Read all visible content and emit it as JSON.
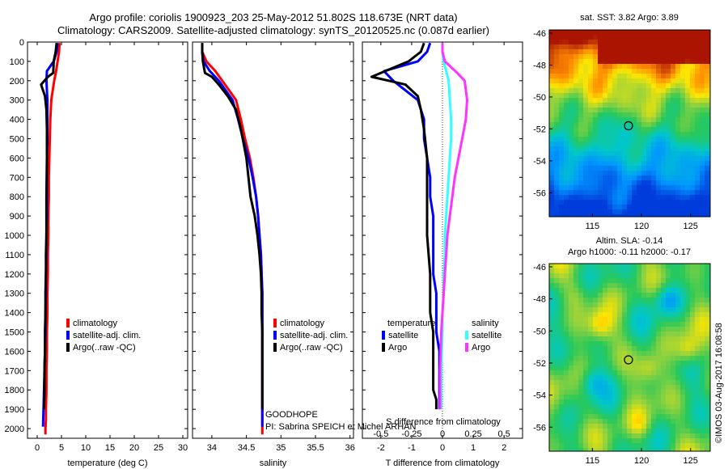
{
  "header": {
    "title_line1": "Argo profile: coriolis 1900923_203 25-May-2012 51.802S 118.673E (NRT data)",
    "title_line2": "Climatology: CARS2009. Satellite-adjusted climatology: synTS_20120525.nc (0.087d earlier)"
  },
  "colors": {
    "climatology": "#ff0000",
    "satellite": "#0000ff",
    "argo": "#000000",
    "argo_salinity_diff": "#ff33ff",
    "satellite_salinity_diff": "#33ffff"
  },
  "chart_data": [
    {
      "type": "line",
      "id": "temperature",
      "xlabel": "temperature (deg C)",
      "xlim": [
        -2,
        31
      ],
      "ylim": [
        2050,
        0
      ],
      "xticks": [
        0,
        5,
        10,
        15,
        20,
        25,
        30
      ],
      "yticks": [
        0,
        100,
        200,
        300,
        400,
        500,
        600,
        700,
        800,
        900,
        1000,
        1100,
        1200,
        1300,
        1400,
        1500,
        1600,
        1700,
        1800,
        1900,
        2000
      ],
      "legend": [
        "climatology",
        "satellite-adj. clim.",
        "Argo(..raw -QC)"
      ],
      "series": [
        {
          "key": "climatology",
          "x": [
            4.6,
            4.5,
            4.2,
            3.9,
            3.5,
            3.2,
            2.9,
            2.7,
            2.6,
            2.5,
            2.4,
            2.4,
            2.3,
            2.3,
            2.2,
            2.2,
            2.1,
            2.1,
            2.0,
            2.0,
            1.9,
            1.9,
            1.8,
            1.8,
            1.7,
            1.7
          ],
          "y": [
            5,
            50,
            100,
            150,
            200,
            250,
            300,
            400,
            500,
            600,
            700,
            800,
            900,
            1000,
            1100,
            1200,
            1300,
            1400,
            1500,
            1600,
            1700,
            1800,
            1900,
            1950,
            2000,
            2030
          ]
        },
        {
          "key": "satellite",
          "x": [
            4.2,
            4.0,
            3.4,
            2.0,
            1.9,
            2.0,
            2.1,
            2.1,
            2.1,
            2.0,
            2.0,
            2.0,
            2.0,
            1.9,
            1.9,
            1.8,
            1.8,
            1.7,
            1.7,
            1.6,
            1.5,
            1.4,
            1.3,
            1.2
          ],
          "y": [
            5,
            50,
            100,
            150,
            200,
            250,
            300,
            400,
            500,
            600,
            700,
            800,
            900,
            1000,
            1100,
            1200,
            1300,
            1400,
            1500,
            1600,
            1700,
            1800,
            1900,
            1990
          ]
        },
        {
          "key": "argo",
          "x": [
            4.0,
            3.8,
            3.4,
            3.3,
            2.2,
            0.8,
            1.6,
            1.9,
            2.0,
            2.0,
            1.9,
            1.9,
            1.9,
            1.8,
            1.8,
            1.7,
            1.7,
            1.6,
            1.6,
            1.5,
            1.5,
            1.4
          ],
          "y": [
            5,
            50,
            100,
            160,
            180,
            220,
            280,
            350,
            450,
            600,
            800,
            900,
            1000,
            1100,
            1200,
            1300,
            1400,
            1500,
            1600,
            1700,
            1800,
            1900
          ]
        }
      ]
    },
    {
      "type": "line",
      "id": "salinity",
      "xlabel": "salinity",
      "xlim": [
        33.72,
        36.05
      ],
      "ylim": [
        2050,
        0
      ],
      "xticks": [
        34,
        34.5,
        35,
        35.5,
        36
      ],
      "legend": [
        "climatology",
        "satellite-adj. clim.",
        "Argo(..raw -QC)"
      ],
      "series": [
        {
          "key": "climatology",
          "x": [
            33.86,
            33.86,
            33.92,
            34.05,
            34.15,
            34.25,
            34.35,
            34.42,
            34.48,
            34.55,
            34.6,
            34.64,
            34.67,
            34.69,
            34.71,
            34.72,
            34.73,
            34.73,
            34.73,
            34.73,
            34.73,
            34.73,
            34.73,
            34.73,
            34.73,
            34.73
          ],
          "y": [
            5,
            50,
            100,
            150,
            200,
            250,
            300,
            400,
            500,
            600,
            700,
            800,
            900,
            1000,
            1100,
            1200,
            1300,
            1400,
            1500,
            1600,
            1700,
            1800,
            1900,
            1950,
            2000,
            2030
          ]
        },
        {
          "key": "satellite",
          "x": [
            33.86,
            33.86,
            33.88,
            33.97,
            34.1,
            34.2,
            34.3,
            34.38,
            34.45,
            34.53,
            34.59,
            34.64,
            34.67,
            34.69,
            34.71,
            34.72,
            34.73,
            34.73,
            34.73,
            34.73,
            34.73,
            34.73,
            34.73,
            34.73
          ],
          "y": [
            5,
            50,
            100,
            150,
            200,
            250,
            300,
            400,
            500,
            600,
            700,
            800,
            900,
            1000,
            1100,
            1200,
            1300,
            1400,
            1500,
            1600,
            1700,
            1800,
            1900,
            1990
          ]
        },
        {
          "key": "argo",
          "x": [
            33.86,
            33.86,
            33.87,
            33.9,
            34.0,
            34.1,
            34.23,
            34.35,
            34.42,
            34.5,
            34.56,
            34.62,
            34.66,
            34.69,
            34.71,
            34.72,
            34.72,
            34.73,
            34.73,
            34.73,
            34.73,
            34.73
          ],
          "y": [
            5,
            50,
            100,
            160,
            180,
            220,
            280,
            350,
            450,
            600,
            800,
            900,
            1000,
            1100,
            1200,
            1300,
            1400,
            1500,
            1600,
            1700,
            1800,
            1900
          ]
        }
      ],
      "annotation": [
        "GOODHOPE",
        "PI: Sabrina SPEICH et Michel ARHAN"
      ]
    },
    {
      "type": "line",
      "id": "differences",
      "xlabel": "T difference from climatology",
      "xlabel_top": "S difference from climatology",
      "xlim": [
        -2.6,
        2.6
      ],
      "ylim": [
        2050,
        0
      ],
      "xticks": [
        -2,
        -1,
        0,
        1,
        2
      ],
      "s_ticks": [
        -0.5,
        -0.25,
        0,
        0.25,
        0.5
      ],
      "legend_headers": [
        "temperature",
        "salinity"
      ],
      "legend": [
        "satellite",
        "Argo",
        "satellite",
        "Argo"
      ],
      "series": [
        {
          "key": "satellite",
          "x": [
            -0.4,
            -0.5,
            -0.8,
            -1.9,
            -1.6,
            -1.2,
            -0.8,
            -0.6,
            -0.6,
            -0.5,
            -0.4,
            -0.4,
            -0.3,
            -0.3,
            -0.3,
            -0.3,
            -0.2,
            -0.2,
            -0.2,
            -0.1,
            -0.1,
            -0.1,
            -0.1
          ],
          "y": [
            5,
            50,
            100,
            150,
            200,
            250,
            300,
            400,
            500,
            600,
            700,
            800,
            900,
            1000,
            1100,
            1200,
            1300,
            1400,
            1500,
            1600,
            1700,
            1800,
            1900
          ]
        },
        {
          "key": "argo",
          "x": [
            -0.6,
            -0.7,
            -1.1,
            -2.3,
            -1.2,
            -0.8,
            -0.7,
            -0.6,
            -0.5,
            -0.5,
            -0.5,
            -0.4,
            -0.4,
            -0.4,
            -0.3,
            -0.3,
            -0.3,
            -0.3,
            -0.2,
            -0.2
          ],
          "y": [
            5,
            50,
            100,
            180,
            220,
            280,
            350,
            450,
            600,
            800,
            1000,
            1200,
            1300,
            1400,
            1500,
            1600,
            1700,
            1800,
            1850,
            1900
          ]
        },
        {
          "key": "satellite_salinity_diff",
          "x": [
            0,
            0,
            0.01,
            0.03,
            0.05,
            0.06,
            0.07,
            0.07,
            0.06,
            0.05,
            0.04,
            0.03,
            0.02,
            0.02,
            0.01,
            0.01,
            0.0,
            0.0,
            -0.01,
            -0.01
          ],
          "y": [
            5,
            50,
            100,
            150,
            200,
            300,
            400,
            500,
            600,
            700,
            800,
            900,
            1000,
            1100,
            1200,
            1300,
            1400,
            1500,
            1700,
            1900
          ]
        },
        {
          "key": "argo_salinity_diff",
          "x": [
            0,
            0,
            0.02,
            0.12,
            0.18,
            0.2,
            0.19,
            0.16,
            0.13,
            0.1,
            0.08,
            0.06,
            0.04,
            0.03,
            0.02,
            0.01,
            0.0,
            -0.01,
            -0.02,
            -0.02
          ],
          "y": [
            5,
            50,
            100,
            160,
            200,
            300,
            400,
            500,
            600,
            700,
            800,
            900,
            1000,
            1100,
            1200,
            1300,
            1400,
            1500,
            1700,
            1900
          ]
        }
      ]
    },
    {
      "type": "heatmap",
      "id": "sst_map",
      "title": "sat. SST: 3.82 Argo: 3.89",
      "xticks": [
        115,
        120,
        125
      ],
      "yticks": [
        -46,
        -48,
        -50,
        -52,
        -54,
        -56
      ],
      "xlim": [
        110.6,
        127
      ],
      "ylim": [
        -57.5,
        -45.8
      ],
      "marker": {
        "lon": 118.673,
        "lat": -51.802
      }
    },
    {
      "type": "heatmap",
      "id": "sla_map",
      "title_line1": "Altim. SLA: -0.14",
      "title_line2": "Argo h1000: -0.11 h2000: -0.17",
      "xticks": [
        115,
        120,
        125
      ],
      "yticks": [
        -46,
        -48,
        -50,
        -52,
        -54,
        -56
      ],
      "xlim": [
        110.6,
        127
      ],
      "ylim": [
        -57.5,
        -45.8
      ],
      "marker": {
        "lon": 118.673,
        "lat": -51.802
      }
    }
  ],
  "footer": {
    "watermark": "©IMOS 03-Aug-2017 16:08:58"
  }
}
